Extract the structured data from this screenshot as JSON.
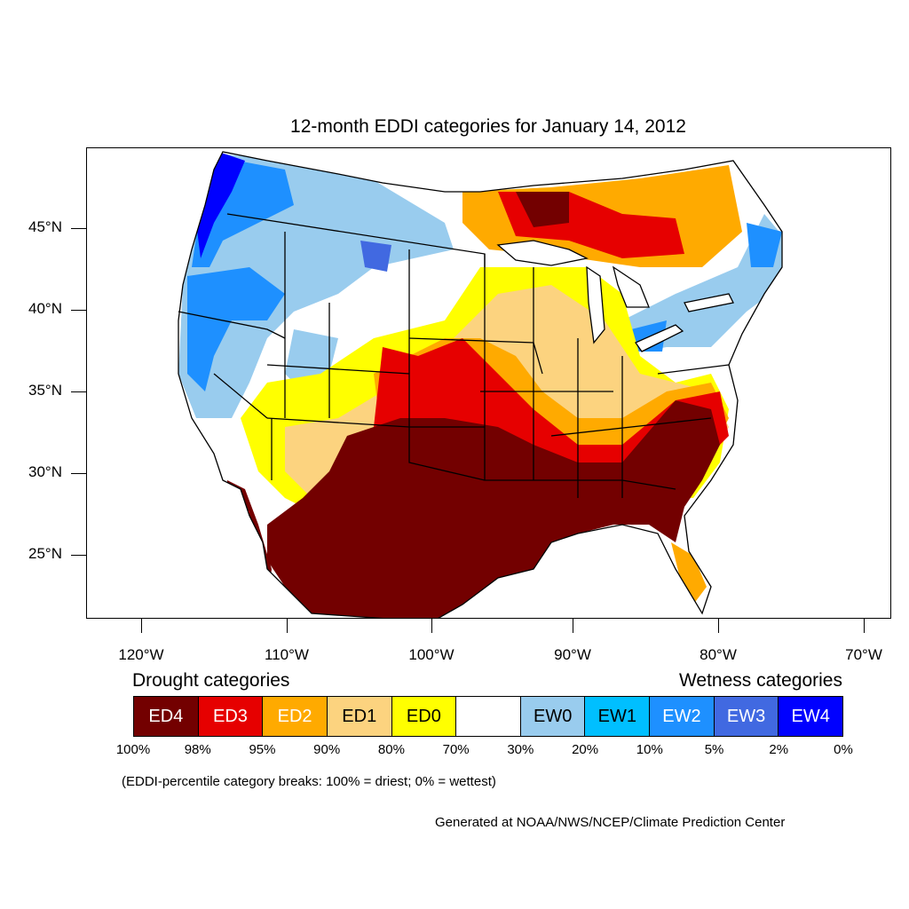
{
  "title": "12-month EDDI categories for January 14, 2012",
  "axes": {
    "y_labels": [
      "45°N",
      "40°N",
      "35°N",
      "30°N",
      "25°N"
    ],
    "x_labels": [
      "120°W",
      "110°W",
      "100°W",
      "90°W",
      "80°W",
      "70°W"
    ]
  },
  "legend": {
    "drought_heading": "Drought categories",
    "wetness_heading": "Wetness categories",
    "categories": [
      {
        "label": "ED4",
        "color": "#730000",
        "text_color": "#ffffff"
      },
      {
        "label": "ED3",
        "color": "#e60000",
        "text_color": "#ffffff"
      },
      {
        "label": "ED2",
        "color": "#ffaa00",
        "text_color": "#ffffff"
      },
      {
        "label": "ED1",
        "color": "#fcd37f",
        "text_color": "#000000"
      },
      {
        "label": "ED0",
        "color": "#ffff00",
        "text_color": "#000000"
      },
      {
        "label": "",
        "color": "#ffffff",
        "text_color": "#000000"
      },
      {
        "label": "EW0",
        "color": "#99ccee",
        "text_color": "#000000"
      },
      {
        "label": "EW1",
        "color": "#00bfff",
        "text_color": "#000000"
      },
      {
        "label": "EW2",
        "color": "#1e90ff",
        "text_color": "#ffffff"
      },
      {
        "label": "EW3",
        "color": "#4169e1",
        "text_color": "#ffffff"
      },
      {
        "label": "EW4",
        "color": "#0000ff",
        "text_color": "#ffffff"
      }
    ],
    "percentiles": [
      "100%",
      "98%",
      "95%",
      "90%",
      "80%",
      "70%",
      "30%",
      "20%",
      "10%",
      "5%",
      "2%",
      "0%"
    ]
  },
  "note": "(EDDI-percentile category breaks: 100% = driest; 0% = wettest)",
  "credit": "Generated at NOAA/NWS/NCEP/Climate Prediction Center"
}
